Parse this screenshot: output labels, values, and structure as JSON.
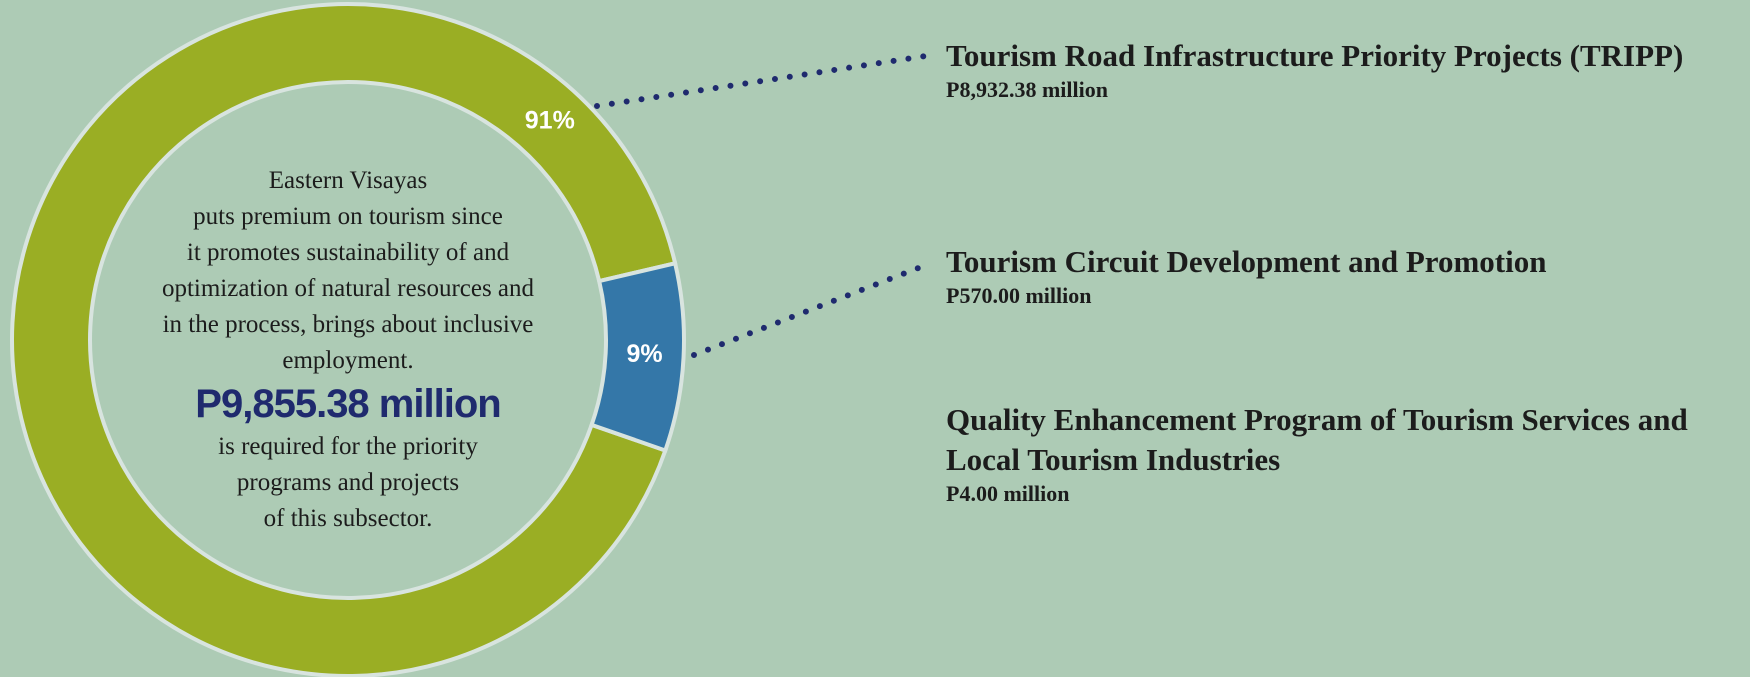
{
  "chart_data": {
    "type": "pie",
    "donut": true,
    "values": [
      91,
      9
    ],
    "value_labels": [
      "91%",
      "9%"
    ],
    "colors": [
      "#9aae24",
      "#3477a8"
    ],
    "center_text_top": [
      "Eastern Visayas",
      "puts premium on tourism since",
      "it promotes sustainability of and",
      "optimization of natural resources and",
      "in the process, brings about inclusive",
      "employment."
    ],
    "total": "P9,855.38 million",
    "center_text_bottom": [
      "is required for the priority",
      "programs and projects",
      "of this subsector."
    ],
    "items": [
      {
        "name": "Tourism Road Infrastructure Priority Projects (TRIPP)",
        "amount": "P8,932.38 million"
      },
      {
        "name": "Tourism Circuit Development and Promotion",
        "amount": "P570.00 million"
      },
      {
        "name": "Quality Enhancement Program of Tourism Services and Local Tourism Industries",
        "amount": "P4.00 million"
      }
    ]
  }
}
